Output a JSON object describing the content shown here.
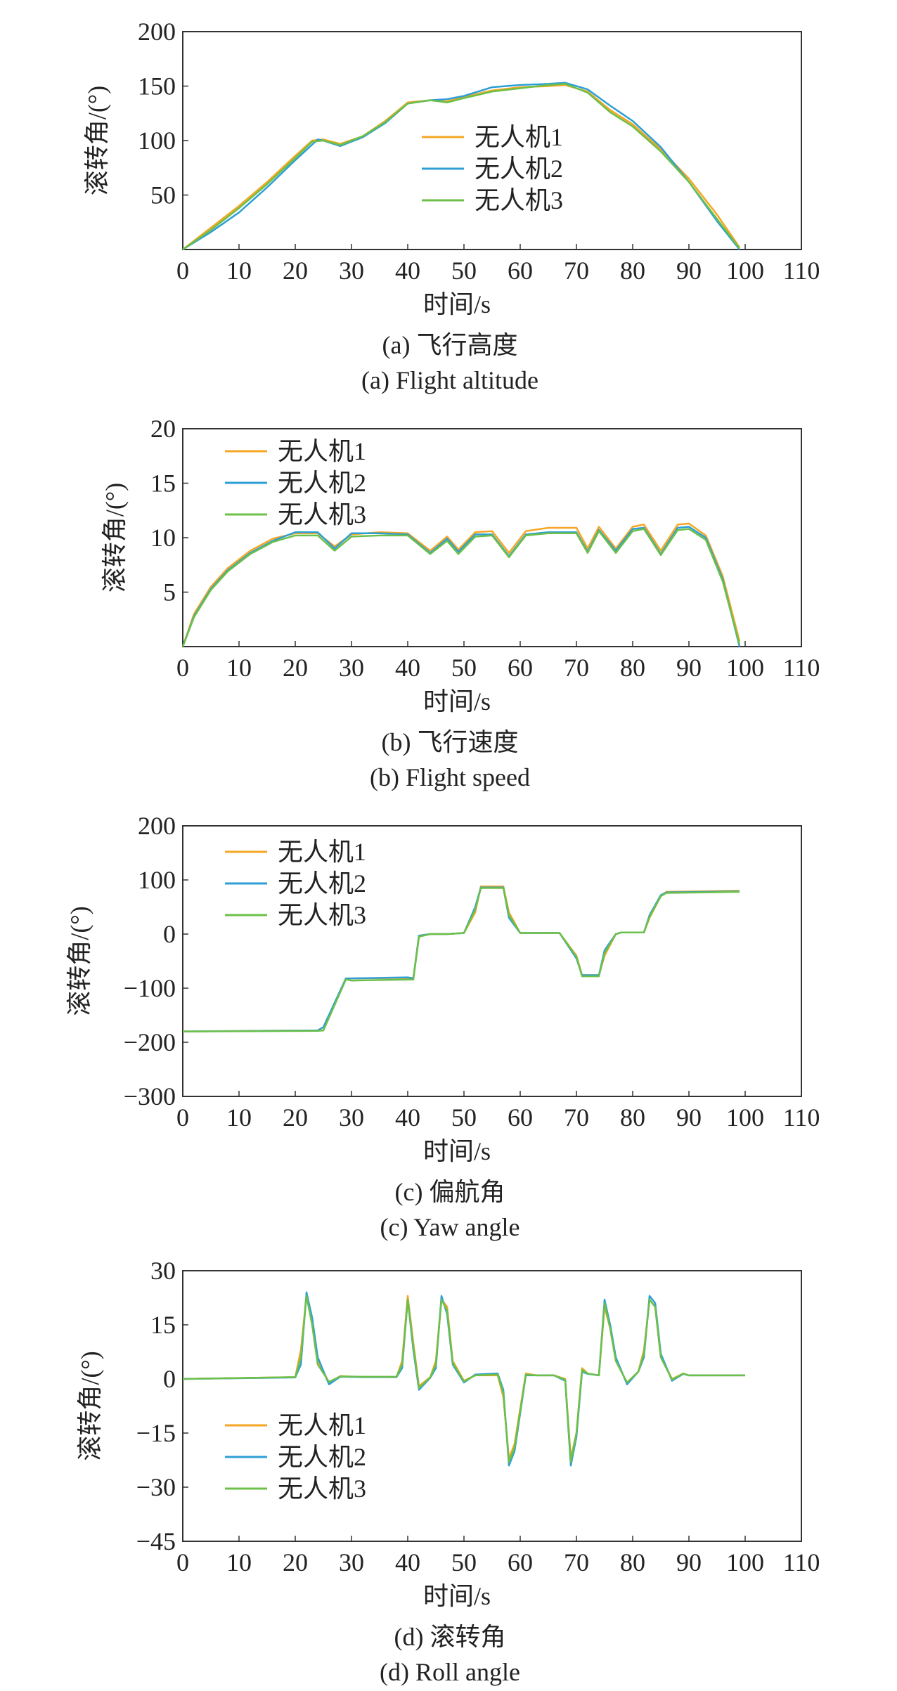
{
  "colors": {
    "uav1": "#F5A623",
    "uav2": "#2E9FD6",
    "uav3": "#6CC04A",
    "axis": "#333333"
  },
  "chart_data": [
    {
      "type": "line",
      "caption_cn": "(a) 飞行高度",
      "caption_en": "(a) Flight altitude",
      "xlabel": "时间/s",
      "ylabel": "滚转角/(°)",
      "xlim": [
        0,
        110
      ],
      "ylim": [
        0,
        200
      ],
      "xticks": [
        "0",
        "10",
        "20",
        "30",
        "40",
        "50",
        "60",
        "70",
        "80",
        "90",
        "100",
        "110"
      ],
      "yticks": [
        "50",
        "100",
        "150",
        "200"
      ],
      "legend_position": "center",
      "series": [
        {
          "name": "无人机1",
          "x": [
            0,
            5,
            10,
            15,
            20,
            23,
            25,
            28,
            32,
            36,
            40,
            44,
            47,
            50,
            55,
            60,
            65,
            68,
            72,
            76,
            80,
            85,
            90,
            95,
            99
          ],
          "values": [
            0,
            20,
            40,
            62,
            86,
            100,
            101,
            97,
            104,
            118,
            135,
            137,
            136,
            140,
            146,
            149,
            150,
            151,
            145,
            128,
            115,
            92,
            65,
            32,
            2
          ]
        },
        {
          "name": "无人机2",
          "x": [
            0,
            5,
            10,
            15,
            20,
            24,
            25,
            28,
            32,
            36,
            40,
            44,
            47,
            50,
            55,
            60,
            65,
            68,
            72,
            76,
            80,
            85,
            90,
            95,
            99
          ],
          "values": [
            0,
            16,
            34,
            57,
            82,
            101,
            100,
            95,
            103,
            116,
            134,
            137,
            138,
            141,
            149,
            151,
            152,
            153,
            147,
            132,
            118,
            94,
            62,
            26,
            0
          ]
        },
        {
          "name": "无人机3",
          "x": [
            0,
            5,
            10,
            15,
            20,
            23,
            25,
            28,
            32,
            36,
            40,
            44,
            47,
            50,
            55,
            60,
            65,
            68,
            72,
            76,
            80,
            85,
            90,
            95,
            99
          ],
          "values": [
            0,
            18,
            38,
            60,
            84,
            99,
            100,
            96,
            104,
            117,
            134,
            137,
            135,
            139,
            145,
            148,
            151,
            152,
            144,
            126,
            113,
            90,
            62,
            28,
            1
          ]
        }
      ]
    },
    {
      "type": "line",
      "caption_cn": "(b) 飞行速度",
      "caption_en": "(b) Flight speed",
      "xlabel": "时间/s",
      "ylabel": "滚转角/(°)",
      "xlim": [
        0,
        110
      ],
      "ylim": [
        0,
        20
      ],
      "xticks": [
        "0",
        "10",
        "20",
        "30",
        "40",
        "50",
        "60",
        "70",
        "80",
        "90",
        "100",
        "110"
      ],
      "yticks": [
        "5",
        "10",
        "15",
        "20"
      ],
      "legend_position": "top-left",
      "series": [
        {
          "name": "无人机1",
          "x": [
            0,
            2,
            5,
            8,
            12,
            16,
            20,
            24,
            27,
            30,
            35,
            40,
            44,
            47,
            49,
            52,
            55,
            58,
            61,
            65,
            70,
            72,
            74,
            77,
            80,
            82,
            85,
            88,
            90,
            93,
            96,
            99
          ],
          "values": [
            0,
            3,
            5.5,
            7.2,
            8.8,
            9.9,
            10.4,
            10.4,
            9.2,
            10.3,
            10.5,
            10.4,
            8.8,
            10.1,
            8.9,
            10.5,
            10.6,
            8.6,
            10.6,
            10.9,
            10.9,
            9.0,
            11.0,
            9.0,
            11.0,
            11.2,
            8.8,
            11.2,
            11.3,
            10.2,
            6.5,
            0.5
          ]
        },
        {
          "name": "无人机2",
          "x": [
            0,
            2,
            5,
            8,
            12,
            16,
            20,
            24,
            27,
            30,
            35,
            40,
            44,
            47,
            49,
            52,
            55,
            58,
            61,
            65,
            70,
            72,
            74,
            77,
            80,
            82,
            85,
            88,
            90,
            93,
            96,
            99
          ],
          "values": [
            0,
            2.8,
            5.3,
            7.0,
            8.6,
            9.7,
            10.5,
            10.5,
            9.0,
            10.4,
            10.4,
            10.3,
            8.6,
            9.9,
            8.7,
            10.3,
            10.3,
            8.3,
            10.3,
            10.5,
            10.5,
            8.7,
            10.7,
            8.8,
            10.8,
            10.9,
            8.5,
            10.9,
            11.0,
            10.0,
            6.2,
            0
          ]
        },
        {
          "name": "无人机3",
          "x": [
            0,
            2,
            5,
            8,
            12,
            16,
            20,
            24,
            27,
            30,
            35,
            40,
            44,
            47,
            49,
            52,
            55,
            58,
            61,
            65,
            70,
            72,
            74,
            77,
            80,
            82,
            85,
            88,
            90,
            93,
            96,
            99
          ],
          "values": [
            0,
            2.7,
            5.2,
            6.9,
            8.5,
            9.6,
            10.2,
            10.2,
            8.8,
            10.1,
            10.2,
            10.2,
            8.5,
            9.7,
            8.5,
            10.1,
            10.2,
            8.2,
            10.2,
            10.4,
            10.4,
            8.6,
            10.6,
            8.6,
            10.6,
            10.8,
            8.4,
            10.7,
            10.8,
            9.8,
            6.0,
            0.2
          ]
        }
      ]
    },
    {
      "type": "line",
      "caption_cn": "(c) 偏航角",
      "caption_en": "(c) Yaw angle",
      "xlabel": "时间/s",
      "ylabel": "滚转角/(°)",
      "xlim": [
        0,
        110
      ],
      "ylim": [
        -300,
        200
      ],
      "xticks": [
        "0",
        "10",
        "20",
        "30",
        "40",
        "50",
        "60",
        "70",
        "80",
        "90",
        "100",
        "110"
      ],
      "yticks": [
        "-300",
        "-200",
        "-100",
        "0",
        "100",
        "200"
      ],
      "legend_position": "top-left",
      "series": [
        {
          "name": "无人机1",
          "x": [
            0,
            24,
            25,
            29,
            30,
            40,
            41,
            42,
            44,
            47,
            50,
            52,
            53,
            57,
            58,
            60,
            67,
            70,
            71,
            74,
            75,
            77,
            78,
            82,
            83,
            85,
            86,
            99
          ],
          "values": [
            -180,
            -178,
            -178,
            -82,
            -82,
            -81,
            -81,
            -3,
            0,
            0,
            2,
            40,
            88,
            88,
            40,
            2,
            2,
            -40,
            -76,
            -76,
            -40,
            0,
            3,
            3,
            30,
            70,
            78,
            80
          ]
        },
        {
          "name": "无人机2",
          "x": [
            0,
            24,
            25,
            29,
            30,
            40,
            41,
            42,
            44,
            47,
            50,
            52,
            53,
            57,
            58,
            60,
            67,
            70,
            71,
            74,
            75,
            77,
            78,
            82,
            83,
            85,
            86,
            99
          ],
          "values": [
            -180,
            -178,
            -172,
            -82,
            -82,
            -80,
            -82,
            -3,
            0,
            0,
            2,
            50,
            86,
            86,
            30,
            2,
            2,
            -45,
            -76,
            -76,
            -30,
            0,
            3,
            3,
            35,
            72,
            77,
            79
          ]
        },
        {
          "name": "无人机3",
          "x": [
            0,
            24,
            25,
            29,
            30,
            40,
            41,
            42,
            44,
            47,
            50,
            52,
            53,
            57,
            58,
            60,
            67,
            70,
            71,
            74,
            75,
            77,
            78,
            82,
            83,
            85,
            86,
            99
          ],
          "values": [
            -180,
            -179,
            -178,
            -84,
            -86,
            -84,
            -84,
            -5,
            0,
            0,
            2,
            45,
            85,
            85,
            35,
            2,
            2,
            -42,
            -78,
            -78,
            -35,
            0,
            3,
            3,
            32,
            70,
            76,
            78
          ]
        }
      ]
    },
    {
      "type": "line",
      "caption_cn": "(d) 滚转角",
      "caption_en": "(d) Roll angle",
      "xlabel": "时间/s",
      "ylabel": "滚转角/(°)",
      "xlim": [
        0,
        110
      ],
      "ylim": [
        -45,
        30
      ],
      "xticks": [
        "0",
        "10",
        "20",
        "30",
        "40",
        "50",
        "60",
        "70",
        "80",
        "90",
        "100",
        "110"
      ],
      "yticks": [
        "-45",
        "-30",
        "-15",
        "0",
        "15",
        "30"
      ],
      "legend_position": "bottom-left",
      "series": [
        {
          "name": "无人机1",
          "x": [
            0,
            20,
            21,
            22,
            23,
            24,
            26,
            28,
            32,
            38,
            39,
            40,
            41,
            42,
            44,
            45,
            46,
            47,
            48,
            50,
            52,
            56,
            57,
            58,
            59,
            61,
            63,
            66,
            68,
            69,
            70,
            71,
            72,
            74,
            75,
            76,
            77,
            79,
            81,
            82,
            83,
            84,
            85,
            87,
            89,
            90,
            100
          ],
          "values": [
            0,
            0.5,
            8,
            23,
            16,
            5,
            -1,
            0.8,
            0.5,
            0.5,
            5,
            23,
            10,
            -2,
            0.5,
            5,
            22,
            20,
            5,
            -0.5,
            1,
            1,
            -5,
            -22,
            -18,
            1.5,
            1,
            1,
            0,
            -22,
            -15,
            3,
            1.5,
            1,
            20,
            14,
            5,
            -1,
            2,
            8,
            22,
            20,
            6,
            0,
            1.5,
            1,
            1
          ]
        },
        {
          "name": "无人机2",
          "x": [
            0,
            20,
            21,
            22,
            23,
            24,
            26,
            28,
            32,
            38,
            39,
            40,
            41,
            42,
            44,
            45,
            46,
            47,
            48,
            50,
            52,
            56,
            57,
            58,
            59,
            61,
            63,
            66,
            68,
            69,
            70,
            71,
            72,
            74,
            75,
            76,
            77,
            79,
            81,
            82,
            83,
            84,
            85,
            87,
            89,
            90,
            100
          ],
          "values": [
            0,
            0.4,
            4,
            24,
            17,
            6,
            -1.5,
            0.6,
            0.5,
            0.5,
            3,
            22,
            8,
            -3,
            0.3,
            3,
            23,
            18,
            4,
            -1,
            1.2,
            1.5,
            -3,
            -24,
            -20,
            1,
            1,
            1,
            -0.5,
            -24,
            -16,
            2,
            1.4,
            1,
            22,
            15,
            6,
            -1.5,
            2,
            6,
            23,
            21,
            7,
            -0.5,
            1.4,
            1,
            1
          ]
        },
        {
          "name": "无人机3",
          "x": [
            0,
            20,
            21,
            22,
            23,
            24,
            26,
            28,
            32,
            38,
            39,
            40,
            41,
            42,
            44,
            45,
            46,
            47,
            48,
            50,
            52,
            56,
            57,
            58,
            59,
            61,
            63,
            66,
            68,
            69,
            70,
            71,
            72,
            74,
            75,
            76,
            77,
            79,
            81,
            82,
            83,
            84,
            85,
            87,
            89,
            90,
            100
          ],
          "values": [
            0,
            0.5,
            6,
            23,
            15,
            4,
            -0.8,
            0.7,
            0.6,
            0.6,
            4,
            22,
            9,
            -2.5,
            0.4,
            4,
            22,
            19,
            4.5,
            -0.7,
            1,
            1.2,
            -4,
            -23,
            -19,
            1.2,
            1,
            1,
            -0.2,
            -23,
            -15,
            2.5,
            1.5,
            1,
            21,
            14,
            5,
            -1,
            2,
            7,
            22,
            20,
            6,
            -0.2,
            1.5,
            1,
            1
          ]
        }
      ]
    }
  ]
}
